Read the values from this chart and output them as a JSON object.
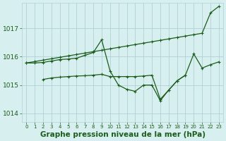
{
  "bg_color": "#d8eff0",
  "grid_color": "#b0d0d8",
  "line_color": "#1a5c1a",
  "title": "Graphe pression niveau de la mer (hPa)",
  "xlabel_fontsize": 7.5,
  "ylabel_values": [
    1014,
    1015,
    1016,
    1017
  ],
  "xlim": [
    -0.5,
    23.5
  ],
  "ylim": [
    1013.7,
    1017.9
  ],
  "series": {
    "line1": {
      "x": [
        0,
        1,
        2,
        3,
        4,
        5,
        6,
        7,
        8,
        9,
        10,
        11,
        12,
        13,
        14,
        15,
        16,
        17,
        18,
        19,
        20,
        21,
        22,
        23
      ],
      "y": [
        1015.78,
        1015.83,
        1015.88,
        1015.93,
        1015.98,
        1016.03,
        1016.08,
        1016.13,
        1016.18,
        1016.23,
        1016.28,
        1016.33,
        1016.38,
        1016.43,
        1016.48,
        1016.53,
        1016.58,
        1016.63,
        1016.68,
        1016.73,
        1016.78,
        1016.83,
        1017.55,
        1017.78
      ]
    },
    "line2": {
      "x": [
        0,
        1,
        2,
        3,
        4,
        5,
        6,
        7,
        8,
        9,
        10,
        11,
        12,
        13,
        14,
        15,
        16,
        17,
        18,
        19,
        20,
        21,
        22,
        23
      ],
      "y": [
        1015.78,
        1015.78,
        1015.8,
        1015.85,
        1015.9,
        1015.92,
        1015.95,
        1016.05,
        1016.15,
        1016.6,
        1015.5,
        1015.0,
        1014.85,
        1014.78,
        1015.0,
        1015.0,
        1014.45,
        1014.82,
        1015.15,
        1015.35,
        1016.1,
        1015.6,
        1015.72,
        1015.82
      ]
    },
    "line3": {
      "x": [
        2,
        3,
        4,
        5,
        6,
        7,
        8,
        9,
        10,
        11,
        12,
        13,
        14,
        15,
        16,
        17,
        18,
        19
      ],
      "y": [
        1015.2,
        1015.25,
        1015.28,
        1015.3,
        1015.32,
        1015.33,
        1015.35,
        1015.38,
        1015.3,
        1015.3,
        1015.3,
        1015.3,
        1015.32,
        1015.35,
        1014.5,
        1014.82,
        1015.15,
        1015.35
      ]
    }
  }
}
